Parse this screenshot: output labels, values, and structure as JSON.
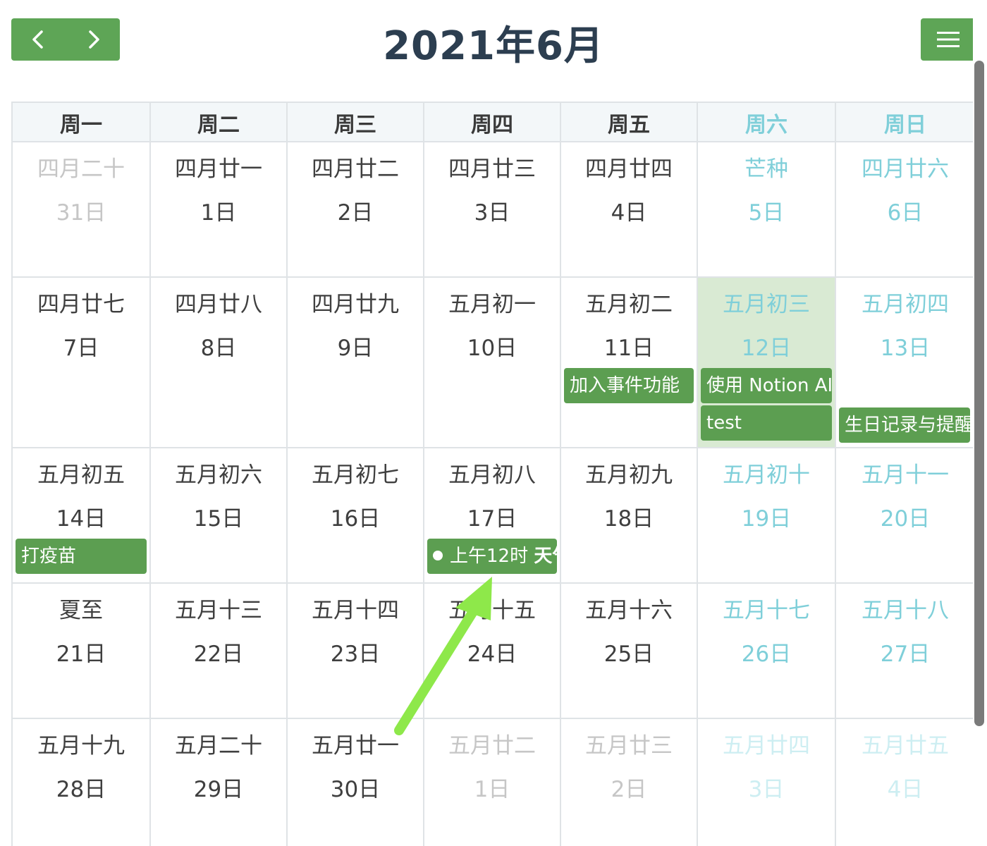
{
  "toolbar": {
    "title": "2021年6月",
    "prev_icon": "chevron-left-icon",
    "next_icon": "chevron-right-icon",
    "menu_icon": "hamburger-menu-icon",
    "accent_color": "#5ea556"
  },
  "weekdays": [
    "周一",
    "周二",
    "周三",
    "周四",
    "周五",
    "周六",
    "周日"
  ],
  "weeks": [
    [
      {
        "lunar": "四月二十",
        "date": "31日",
        "other": true
      },
      {
        "lunar": "四月廿一",
        "date": "1日"
      },
      {
        "lunar": "四月廿二",
        "date": "2日"
      },
      {
        "lunar": "四月廿三",
        "date": "3日"
      },
      {
        "lunar": "四月廿四",
        "date": "4日"
      },
      {
        "lunar": "芒种",
        "date": "5日"
      },
      {
        "lunar": "四月廿六",
        "date": "6日"
      }
    ],
    [
      {
        "lunar": "四月廿七",
        "date": "7日"
      },
      {
        "lunar": "四月廿八",
        "date": "8日"
      },
      {
        "lunar": "四月廿九",
        "date": "9日"
      },
      {
        "lunar": "五月初一",
        "date": "10日"
      },
      {
        "lunar": "五月初二",
        "date": "11日"
      },
      {
        "lunar": "五月初三",
        "date": "12日",
        "today": true
      },
      {
        "lunar": "五月初四",
        "date": "13日"
      }
    ],
    [
      {
        "lunar": "五月初五",
        "date": "14日"
      },
      {
        "lunar": "五月初六",
        "date": "15日"
      },
      {
        "lunar": "五月初七",
        "date": "16日"
      },
      {
        "lunar": "五月初八",
        "date": "17日"
      },
      {
        "lunar": "五月初九",
        "date": "18日"
      },
      {
        "lunar": "五月初十",
        "date": "19日"
      },
      {
        "lunar": "五月十一",
        "date": "20日"
      }
    ],
    [
      {
        "lunar": "夏至",
        "date": "21日"
      },
      {
        "lunar": "五月十三",
        "date": "22日"
      },
      {
        "lunar": "五月十四",
        "date": "23日"
      },
      {
        "lunar": "五月十五",
        "date": "24日"
      },
      {
        "lunar": "五月十六",
        "date": "25日"
      },
      {
        "lunar": "五月十七",
        "date": "26日"
      },
      {
        "lunar": "五月十八",
        "date": "27日"
      }
    ],
    [
      {
        "lunar": "五月十九",
        "date": "28日"
      },
      {
        "lunar": "五月二十",
        "date": "29日"
      },
      {
        "lunar": "五月廿一",
        "date": "30日"
      },
      {
        "lunar": "五月廿二",
        "date": "1日",
        "other": true
      },
      {
        "lunar": "五月廿三",
        "date": "2日",
        "other": true
      },
      {
        "lunar": "五月廿四",
        "date": "3日",
        "other": true
      },
      {
        "lunar": "五月廿五",
        "date": "4日",
        "other": true
      }
    ]
  ],
  "events": {
    "e1": {
      "title": "加入事件功能"
    },
    "e2": {
      "title": "使用 Notion AI"
    },
    "e3": {
      "title": "test"
    },
    "e4": {
      "title": "生日记录与提醒"
    },
    "e5": {
      "title": "打疫苗"
    },
    "e6": {
      "time": "上午12时",
      "title": "天气"
    }
  },
  "colors": {
    "event_bg": "#5c9e51",
    "weekend_text": "#7fcfd9",
    "today_bg": "#d9ead3",
    "annotation_arrow": "#8ee84a"
  }
}
